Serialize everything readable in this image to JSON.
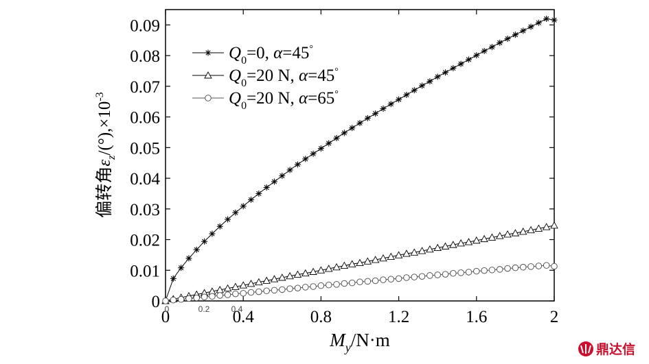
{
  "chart_data": {
    "type": "line",
    "xlabel": {
      "main": "M",
      "sub": "y",
      "rest": "/N·m"
    },
    "ylabel": {
      "cjk": "偏转角",
      "symbol": "ε",
      "sub": "z",
      "rest": "/(°),×10",
      "sup": "-3"
    },
    "xlim": [
      0,
      2
    ],
    "ylim": [
      0,
      0.095
    ],
    "x_ticks": [
      0,
      0.4,
      0.8,
      1.2,
      1.6,
      2
    ],
    "x_tick_labels": [
      "0",
      "0.4",
      "0.8",
      "1.2",
      "1.6",
      "2"
    ],
    "y_ticks": [
      0,
      0.01,
      0.02,
      0.03,
      0.04,
      0.05,
      0.06,
      0.07,
      0.08,
      0.09
    ],
    "y_tick_labels": [
      "0",
      "0.01",
      "0.02",
      "0.03",
      "0.04",
      "0.05",
      "0.06",
      "0.07",
      "0.08",
      "0.09"
    ],
    "inner_tick_labels": [
      "0",
      "0.2",
      "0.4"
    ],
    "grid": false,
    "legend_position": "top-left",
    "x": [
      0,
      0.04,
      0.08,
      0.12,
      0.16,
      0.2,
      0.24,
      0.28,
      0.32,
      0.36,
      0.4,
      0.44,
      0.48,
      0.52,
      0.56,
      0.6,
      0.64,
      0.68,
      0.72,
      0.76,
      0.8,
      0.84,
      0.88,
      0.92,
      0.96,
      1.0,
      1.04,
      1.08,
      1.12,
      1.16,
      1.2,
      1.24,
      1.28,
      1.32,
      1.36,
      1.4,
      1.44,
      1.48,
      1.52,
      1.56,
      1.6,
      1.64,
      1.68,
      1.72,
      1.76,
      1.8,
      1.84,
      1.88,
      1.92,
      1.96,
      2.0
    ],
    "series": [
      {
        "legend": {
          "q": "Q",
          "sub": "0",
          "eq": "=0, ",
          "alpha": "α",
          "aeq": "=45",
          "deg": "°"
        },
        "marker": "asterisk",
        "values": [
          0,
          0.0073,
          0.0108,
          0.0139,
          0.0167,
          0.0194,
          0.0219,
          0.0243,
          0.0266,
          0.0288,
          0.0309,
          0.033,
          0.035,
          0.037,
          0.0389,
          0.0408,
          0.0427,
          0.0445,
          0.0463,
          0.048,
          0.0497,
          0.0514,
          0.0531,
          0.0548,
          0.0564,
          0.058,
          0.0596,
          0.0611,
          0.0627,
          0.0642,
          0.0657,
          0.0672,
          0.0687,
          0.0702,
          0.0716,
          0.0731,
          0.0745,
          0.0759,
          0.0773,
          0.0787,
          0.0801,
          0.0815,
          0.0828,
          0.0842,
          0.0855,
          0.0868,
          0.0881,
          0.0894,
          0.0907,
          0.092,
          0.0916
        ]
      },
      {
        "legend": {
          "q": "Q",
          "sub": "0",
          "eq": "=20 N, ",
          "alpha": "α",
          "aeq": "=45",
          "deg": "°"
        },
        "marker": "triangle",
        "values": [
          0,
          0.0006,
          0.0011,
          0.0016,
          0.0021,
          0.0026,
          0.0031,
          0.0036,
          0.0041,
          0.0046,
          0.0051,
          0.0056,
          0.0061,
          0.0066,
          0.0071,
          0.0076,
          0.0081,
          0.0086,
          0.009,
          0.0095,
          0.01,
          0.0105,
          0.011,
          0.0115,
          0.012,
          0.0124,
          0.0129,
          0.0134,
          0.0139,
          0.0144,
          0.0149,
          0.0154,
          0.0158,
          0.0163,
          0.0168,
          0.0173,
          0.0178,
          0.0183,
          0.0188,
          0.0192,
          0.0197,
          0.0202,
          0.0207,
          0.0212,
          0.0217,
          0.0221,
          0.0226,
          0.0231,
          0.0236,
          0.0241,
          0.0246
        ]
      },
      {
        "legend": {
          "q": "Q",
          "sub": "0",
          "eq": "=20 N, ",
          "alpha": "α",
          "aeq": "=65",
          "deg": "°"
        },
        "marker": "circle",
        "values": [
          0,
          0.0003,
          0.0005,
          0.0008,
          0.001,
          0.0013,
          0.0015,
          0.0018,
          0.002,
          0.0023,
          0.0025,
          0.0028,
          0.003,
          0.0033,
          0.0035,
          0.0037,
          0.004,
          0.0042,
          0.0045,
          0.0047,
          0.005,
          0.0052,
          0.0054,
          0.0057,
          0.0059,
          0.0062,
          0.0064,
          0.0066,
          0.0069,
          0.0071,
          0.0073,
          0.0076,
          0.0078,
          0.008,
          0.0083,
          0.0085,
          0.0087,
          0.009,
          0.0092,
          0.0094,
          0.0097,
          0.0099,
          0.0101,
          0.0103,
          0.0106,
          0.0108,
          0.011,
          0.0112,
          0.0114,
          0.0116,
          0.0113
        ]
      }
    ]
  },
  "watermark": {
    "text": "鼎达信",
    "icon": "brand-logo-icon",
    "color": "#c8102e"
  }
}
